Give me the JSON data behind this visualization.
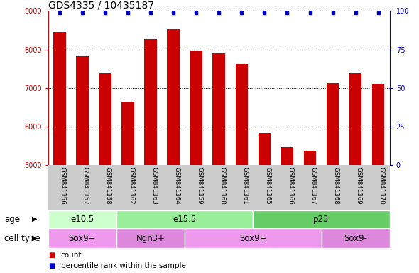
{
  "title": "GDS4335 / 10435187",
  "samples": [
    "GSM841156",
    "GSM841157",
    "GSM841158",
    "GSM841162",
    "GSM841163",
    "GSM841164",
    "GSM841159",
    "GSM841160",
    "GSM841161",
    "GSM841165",
    "GSM841166",
    "GSM841167",
    "GSM841168",
    "GSM841169",
    "GSM841170"
  ],
  "counts": [
    8450,
    7820,
    7380,
    6640,
    8270,
    8530,
    7960,
    7900,
    7630,
    5830,
    5460,
    5370,
    7130,
    7390,
    7110
  ],
  "percentile_ranks": [
    99,
    99,
    99,
    99,
    99,
    99,
    99,
    99,
    99,
    99,
    99,
    99,
    99,
    99,
    99
  ],
  "ylim_left": [
    5000,
    9000
  ],
  "ylim_right": [
    0,
    100
  ],
  "yticks_left": [
    5000,
    6000,
    7000,
    8000,
    9000
  ],
  "yticks_right": [
    0,
    25,
    50,
    75,
    100
  ],
  "bar_color": "#cc0000",
  "dot_color": "#0000cc",
  "left_axis_color": "#cc0000",
  "right_axis_color": "#0000cc",
  "age_groups": [
    {
      "label": "e10.5",
      "start": 0,
      "end": 3,
      "color": "#ccffcc"
    },
    {
      "label": "e15.5",
      "start": 3,
      "end": 9,
      "color": "#99ee99"
    },
    {
      "label": "p23",
      "start": 9,
      "end": 15,
      "color": "#66cc66"
    }
  ],
  "cell_type_groups": [
    {
      "label": "Sox9+",
      "start": 0,
      "end": 3,
      "color": "#ee99ee"
    },
    {
      "label": "Ngn3+",
      "start": 3,
      "end": 6,
      "color": "#dd88dd"
    },
    {
      "label": "Sox9+",
      "start": 6,
      "end": 12,
      "color": "#ee99ee"
    },
    {
      "label": "Sox9-",
      "start": 12,
      "end": 15,
      "color": "#dd88dd"
    }
  ],
  "legend_count_color": "#cc0000",
  "legend_dot_color": "#0000cc",
  "background_color": "#ffffff",
  "tick_area_color": "#cccccc",
  "title_fontsize": 10,
  "tick_fontsize": 7,
  "label_fontsize": 8.5,
  "bar_width": 0.55
}
